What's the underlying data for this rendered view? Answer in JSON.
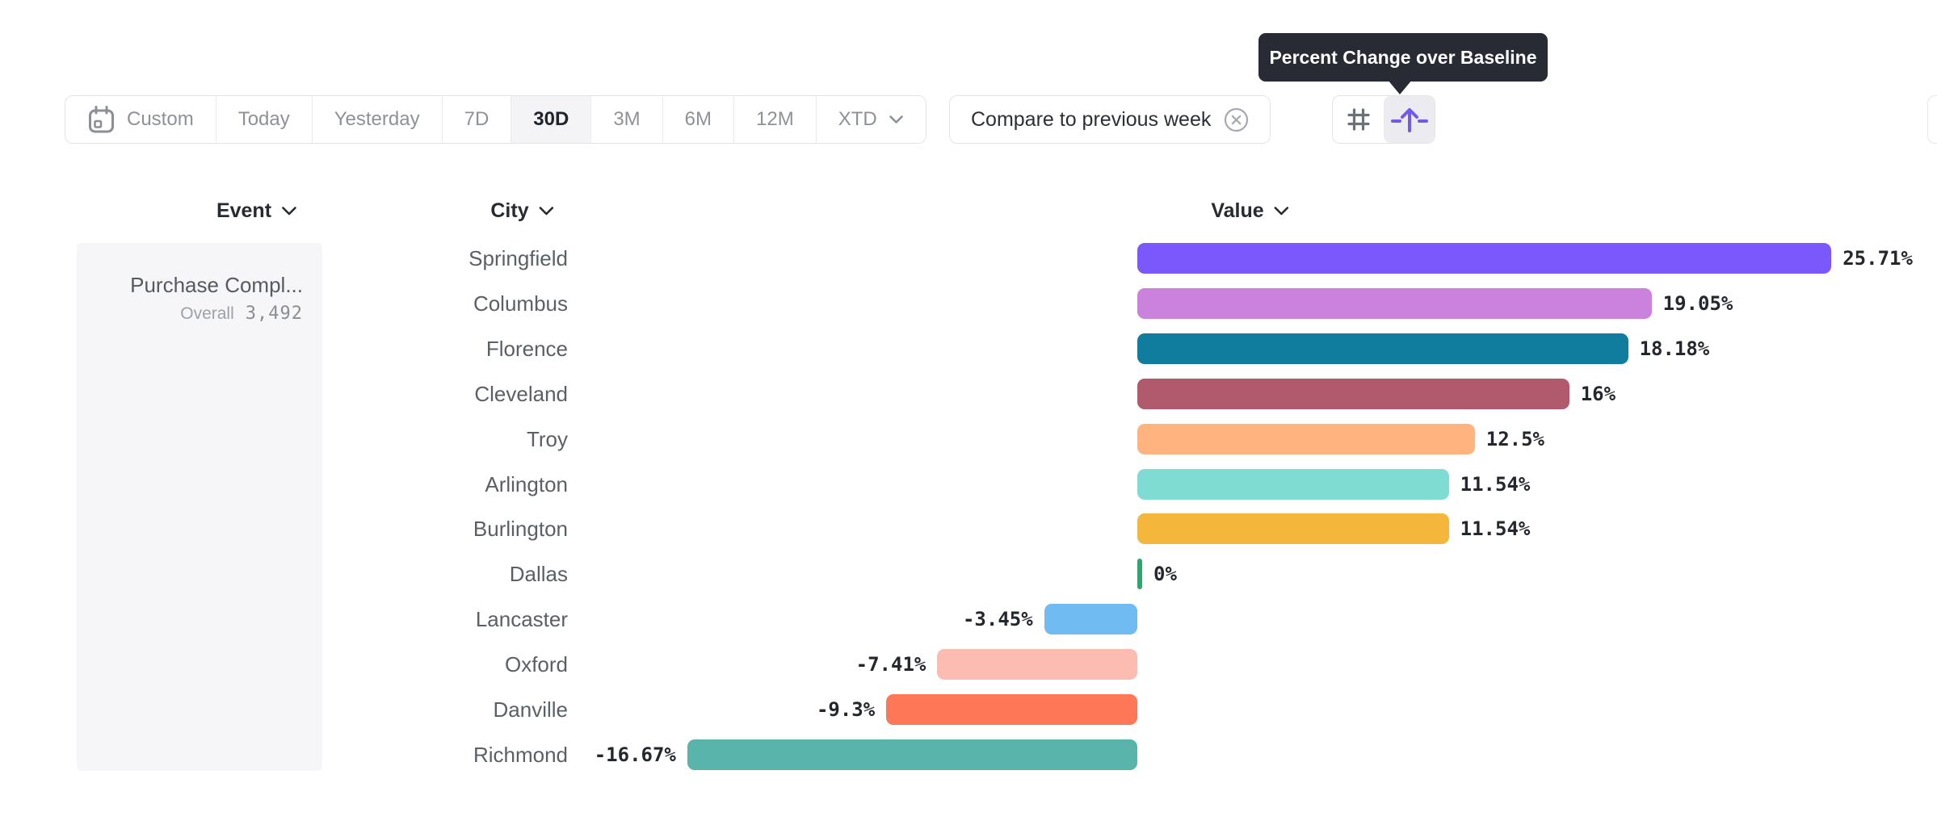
{
  "tooltip": {
    "text": "Percent Change over Baseline"
  },
  "toolbar": {
    "date_ranges": [
      {
        "label": "Custom",
        "icon": "calendar-icon"
      },
      {
        "label": "Today"
      },
      {
        "label": "Yesterday"
      },
      {
        "label": "7D"
      },
      {
        "label": "30D",
        "active": true
      },
      {
        "label": "3M"
      },
      {
        "label": "6M"
      },
      {
        "label": "12M"
      },
      {
        "label": "XTD",
        "chevron": true
      }
    ],
    "compare_chip": {
      "label": "Compare to previous week",
      "close_icon": "remove-circle-icon"
    },
    "view_toggle": {
      "options": [
        "grid-hash-icon",
        "percent-change-over-baseline-icon"
      ],
      "active": "percent-change-over-baseline-icon"
    }
  },
  "columns": [
    {
      "label": "Event"
    },
    {
      "label": "City"
    },
    {
      "label": "Value"
    }
  ],
  "event_panel": {
    "title": "Purchase Compl...",
    "overall_label": "Overall",
    "overall_value": "3,492"
  },
  "chart_data": {
    "type": "bar",
    "orientation": "horizontal",
    "title": "Percent Change over Baseline",
    "categories": [
      "Springfield",
      "Columbus",
      "Florence",
      "Cleveland",
      "Troy",
      "Arlington",
      "Burlington",
      "Dallas",
      "Lancaster",
      "Oxford",
      "Danville",
      "Richmond"
    ],
    "values": [
      25.71,
      19.05,
      18.18,
      16,
      12.5,
      11.54,
      11.54,
      0,
      -3.45,
      -7.41,
      -9.3,
      -16.67
    ],
    "value_labels": [
      "25.71%",
      "19.05%",
      "18.18%",
      "16%",
      "12.5%",
      "11.54%",
      "11.54%",
      "0%",
      "-3.45%",
      "-7.41%",
      "-9.3%",
      "-16.67%"
    ],
    "bar_colors": [
      "#7b58fb",
      "#cb82dd",
      "#117d9e",
      "#b25a6d",
      "#ffb37e",
      "#7fdcd3",
      "#f5b73b",
      "#2fa56f",
      "#6fbbf2",
      "#fdbcb2",
      "#fe7757",
      "#59b5ac"
    ],
    "xlim": [
      -16.67,
      25.71
    ],
    "baseline": 0,
    "grid": false,
    "legend": false
  },
  "colors": {
    "accent_purple": "#7059ee",
    "tooltip_bg": "#282b34",
    "positive_max": "#7b58fb"
  }
}
